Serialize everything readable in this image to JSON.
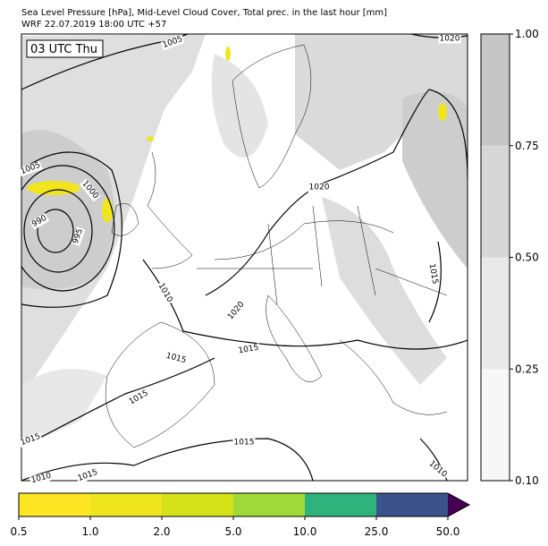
{
  "header": {
    "title": "Sea Level Pressure [hPa], Mid-Level Cloud Cover, Total prec. in the last hour [mm]",
    "subtitle": "WRF 22.07.2019 18:00 UTC +57"
  },
  "map": {
    "time_label": "03 UTC Thu",
    "contour_labels": [
      "1005",
      "1020",
      "1005",
      "1000",
      "990",
      "995",
      "1020",
      "1010",
      "1020",
      "1015",
      "1015",
      "1015",
      "1015",
      "1015",
      "1015",
      "1010",
      "1015",
      "1010"
    ]
  },
  "cloud_colorbar": {
    "ticks": [
      {
        "value": 0.1,
        "label": "0.10"
      },
      0.25,
      {
        "value": 0.5,
        "label": "0.50"
      },
      0.75,
      {
        "value": 1,
        "label": "1.00"
      }
    ],
    "colors": [
      "#f7f7f7",
      "#e9e9e9",
      "#d7d7d7",
      "#c6c6c6"
    ]
  },
  "precip_colorbar": {
    "ticks": [
      0.5,
      {
        "value": 1,
        "label": "1.0"
      },
      {
        "value": 2,
        "label": "2.0"
      },
      {
        "value": 5,
        "label": "5.0"
      },
      {
        "value": 10,
        "label": "10.0"
      },
      {
        "value": 25,
        "label": "25.0"
      },
      {
        "value": 50,
        "label": "50.0"
      }
    ],
    "colors": [
      "#fde725",
      "#eee51c",
      "#d5e21a",
      "#a0da39",
      "#2eb37c",
      "#3b528b",
      "#440154"
    ]
  }
}
